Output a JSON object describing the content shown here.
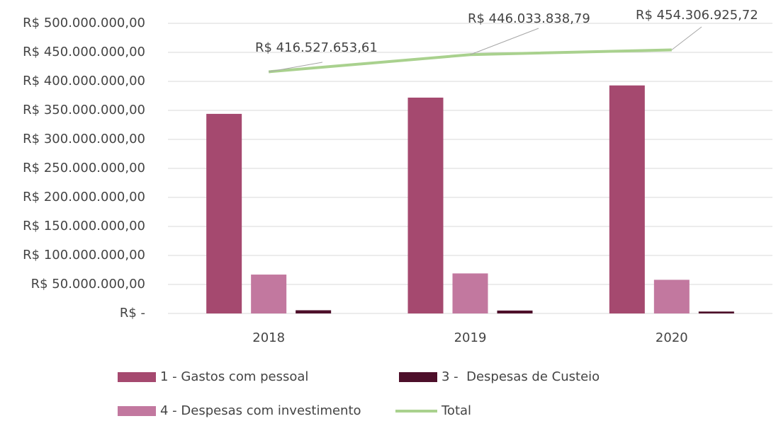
{
  "chart_data": {
    "type": "bar",
    "categories": [
      "2018",
      "2019",
      "2020"
    ],
    "series": [
      {
        "name": "1 - Gastos com pessoal",
        "color": "#a5496f",
        "type": "bar",
        "values": [
          344000000,
          372000000,
          393000000
        ]
      },
      {
        "name": "4 - Despesas com investimento",
        "color": "#c2789f",
        "type": "bar",
        "values": [
          67000000,
          69000000,
          58000000
        ]
      },
      {
        "name": "3 -  Despesas de Custeio",
        "color": "#4d0f2a",
        "type": "bar",
        "values": [
          5500000,
          5000000,
          3300000
        ]
      },
      {
        "name": "Total",
        "color": "#a9d18e",
        "type": "line",
        "values": [
          416527653.61,
          446033838.79,
          454306925.72
        ],
        "value_labels": [
          "R$ 416.527.653,61",
          "R$ 446.033.838,79",
          "R$ 454.306.925,72"
        ]
      }
    ],
    "ylim": [
      0,
      500000000
    ],
    "yticks": [
      {
        "value": 0,
        "label": "R$ -"
      },
      {
        "value": 50000000,
        "label": "R$ 50.000.000,00"
      },
      {
        "value": 100000000,
        "label": "R$ 100.000.000,00"
      },
      {
        "value": 150000000,
        "label": "R$ 150.000.000,00"
      },
      {
        "value": 200000000,
        "label": "R$ 200.000.000,00"
      },
      {
        "value": 250000000,
        "label": "R$ 250.000.000,00"
      },
      {
        "value": 300000000,
        "label": "R$ 300.000.000,00"
      },
      {
        "value": 350000000,
        "label": "R$ 350.000.000,00"
      },
      {
        "value": 400000000,
        "label": "R$ 400.000.000,00"
      },
      {
        "value": 450000000,
        "label": "R$ 450.000.000,00"
      },
      {
        "value": 500000000,
        "label": "R$ 500.000.000,00"
      }
    ],
    "grid": true
  }
}
